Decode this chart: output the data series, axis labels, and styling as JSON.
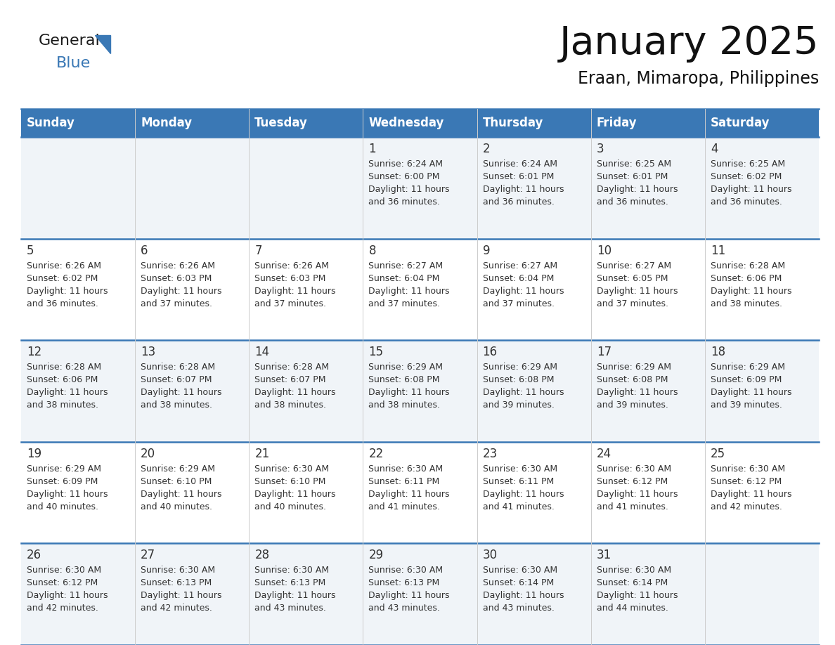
{
  "title": "January 2025",
  "subtitle": "Eraan, Mimaropa, Philippines",
  "header_bg": "#3a78b5",
  "header_text": "#ffffff",
  "header_days": [
    "Sunday",
    "Monday",
    "Tuesday",
    "Wednesday",
    "Thursday",
    "Friday",
    "Saturday"
  ],
  "row_bg_even": "#f0f4f8",
  "row_bg_odd": "#ffffff",
  "divider_color": "#3a78b5",
  "text_color": "#333333",
  "logo_color": "#3a78b5",
  "logo_black": "#1a1a1a",
  "days": [
    {
      "day": 1,
      "col": 3,
      "row": 0,
      "sunrise": "6:24 AM",
      "sunset": "6:00 PM",
      "daylight": "11 hours and 36 minutes."
    },
    {
      "day": 2,
      "col": 4,
      "row": 0,
      "sunrise": "6:24 AM",
      "sunset": "6:01 PM",
      "daylight": "11 hours and 36 minutes."
    },
    {
      "day": 3,
      "col": 5,
      "row": 0,
      "sunrise": "6:25 AM",
      "sunset": "6:01 PM",
      "daylight": "11 hours and 36 minutes."
    },
    {
      "day": 4,
      "col": 6,
      "row": 0,
      "sunrise": "6:25 AM",
      "sunset": "6:02 PM",
      "daylight": "11 hours and 36 minutes."
    },
    {
      "day": 5,
      "col": 0,
      "row": 1,
      "sunrise": "6:26 AM",
      "sunset": "6:02 PM",
      "daylight": "11 hours and 36 minutes."
    },
    {
      "day": 6,
      "col": 1,
      "row": 1,
      "sunrise": "6:26 AM",
      "sunset": "6:03 PM",
      "daylight": "11 hours and 37 minutes."
    },
    {
      "day": 7,
      "col": 2,
      "row": 1,
      "sunrise": "6:26 AM",
      "sunset": "6:03 PM",
      "daylight": "11 hours and 37 minutes."
    },
    {
      "day": 8,
      "col": 3,
      "row": 1,
      "sunrise": "6:27 AM",
      "sunset": "6:04 PM",
      "daylight": "11 hours and 37 minutes."
    },
    {
      "day": 9,
      "col": 4,
      "row": 1,
      "sunrise": "6:27 AM",
      "sunset": "6:04 PM",
      "daylight": "11 hours and 37 minutes."
    },
    {
      "day": 10,
      "col": 5,
      "row": 1,
      "sunrise": "6:27 AM",
      "sunset": "6:05 PM",
      "daylight": "11 hours and 37 minutes."
    },
    {
      "day": 11,
      "col": 6,
      "row": 1,
      "sunrise": "6:28 AM",
      "sunset": "6:06 PM",
      "daylight": "11 hours and 38 minutes."
    },
    {
      "day": 12,
      "col": 0,
      "row": 2,
      "sunrise": "6:28 AM",
      "sunset": "6:06 PM",
      "daylight": "11 hours and 38 minutes."
    },
    {
      "day": 13,
      "col": 1,
      "row": 2,
      "sunrise": "6:28 AM",
      "sunset": "6:07 PM",
      "daylight": "11 hours and 38 minutes."
    },
    {
      "day": 14,
      "col": 2,
      "row": 2,
      "sunrise": "6:28 AM",
      "sunset": "6:07 PM",
      "daylight": "11 hours and 38 minutes."
    },
    {
      "day": 15,
      "col": 3,
      "row": 2,
      "sunrise": "6:29 AM",
      "sunset": "6:08 PM",
      "daylight": "11 hours and 38 minutes."
    },
    {
      "day": 16,
      "col": 4,
      "row": 2,
      "sunrise": "6:29 AM",
      "sunset": "6:08 PM",
      "daylight": "11 hours and 39 minutes."
    },
    {
      "day": 17,
      "col": 5,
      "row": 2,
      "sunrise": "6:29 AM",
      "sunset": "6:08 PM",
      "daylight": "11 hours and 39 minutes."
    },
    {
      "day": 18,
      "col": 6,
      "row": 2,
      "sunrise": "6:29 AM",
      "sunset": "6:09 PM",
      "daylight": "11 hours and 39 minutes."
    },
    {
      "day": 19,
      "col": 0,
      "row": 3,
      "sunrise": "6:29 AM",
      "sunset": "6:09 PM",
      "daylight": "11 hours and 40 minutes."
    },
    {
      "day": 20,
      "col": 1,
      "row": 3,
      "sunrise": "6:29 AM",
      "sunset": "6:10 PM",
      "daylight": "11 hours and 40 minutes."
    },
    {
      "day": 21,
      "col": 2,
      "row": 3,
      "sunrise": "6:30 AM",
      "sunset": "6:10 PM",
      "daylight": "11 hours and 40 minutes."
    },
    {
      "day": 22,
      "col": 3,
      "row": 3,
      "sunrise": "6:30 AM",
      "sunset": "6:11 PM",
      "daylight": "11 hours and 41 minutes."
    },
    {
      "day": 23,
      "col": 4,
      "row": 3,
      "sunrise": "6:30 AM",
      "sunset": "6:11 PM",
      "daylight": "11 hours and 41 minutes."
    },
    {
      "day": 24,
      "col": 5,
      "row": 3,
      "sunrise": "6:30 AM",
      "sunset": "6:12 PM",
      "daylight": "11 hours and 41 minutes."
    },
    {
      "day": 25,
      "col": 6,
      "row": 3,
      "sunrise": "6:30 AM",
      "sunset": "6:12 PM",
      "daylight": "11 hours and 42 minutes."
    },
    {
      "day": 26,
      "col": 0,
      "row": 4,
      "sunrise": "6:30 AM",
      "sunset": "6:12 PM",
      "daylight": "11 hours and 42 minutes."
    },
    {
      "day": 27,
      "col": 1,
      "row": 4,
      "sunrise": "6:30 AM",
      "sunset": "6:13 PM",
      "daylight": "11 hours and 42 minutes."
    },
    {
      "day": 28,
      "col": 2,
      "row": 4,
      "sunrise": "6:30 AM",
      "sunset": "6:13 PM",
      "daylight": "11 hours and 43 minutes."
    },
    {
      "day": 29,
      "col": 3,
      "row": 4,
      "sunrise": "6:30 AM",
      "sunset": "6:13 PM",
      "daylight": "11 hours and 43 minutes."
    },
    {
      "day": 30,
      "col": 4,
      "row": 4,
      "sunrise": "6:30 AM",
      "sunset": "6:14 PM",
      "daylight": "11 hours and 43 minutes."
    },
    {
      "day": 31,
      "col": 5,
      "row": 4,
      "sunrise": "6:30 AM",
      "sunset": "6:14 PM",
      "daylight": "11 hours and 44 minutes."
    }
  ]
}
